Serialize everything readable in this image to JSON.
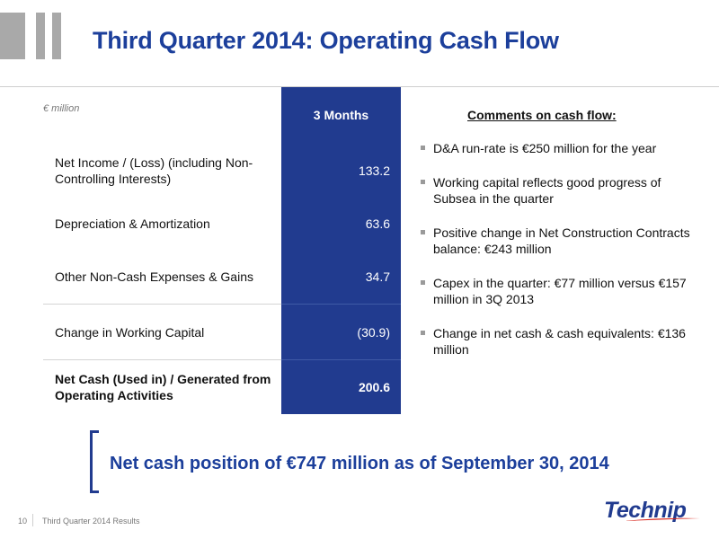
{
  "slide": {
    "title": "Third Quarter 2014: Operating Cash Flow",
    "unit": "€ million"
  },
  "table": {
    "column_header": "3 Months",
    "rows": [
      {
        "label": "Net Income / (Loss) (including Non-Controlling Interests)",
        "value": "133.2"
      },
      {
        "label": "Depreciation & Amortization",
        "value": "63.6"
      },
      {
        "label": "Other Non-Cash Expenses & Gains",
        "value": "34.7"
      },
      {
        "label": "Change in Working Capital",
        "value": "(30.9)"
      },
      {
        "label": "Net Cash (Used in) / Generated from Operating Activities",
        "value": "200.6"
      }
    ]
  },
  "comments": {
    "title": "Comments on cash flow:",
    "items": [
      "D&A run-rate is €250 million for the year",
      "Working capital reflects good progress of Subsea in the quarter",
      "Positive change in Net Construction Contracts balance: €243 million",
      "Capex in the quarter: €77 million versus €157 million in 3Q 2013",
      "Change in net cash & cash equivalents: €136 million"
    ]
  },
  "highlight": "Net cash position of  €747 million as of September 30, 2014",
  "footer": {
    "page_number": "10",
    "text": "Third Quarter 2014 Results"
  },
  "logo": {
    "text": "Technip"
  },
  "colors": {
    "brand_blue": "#1c3f9b",
    "table_blue": "#213b8f",
    "swoosh_red": "#d9261c"
  }
}
